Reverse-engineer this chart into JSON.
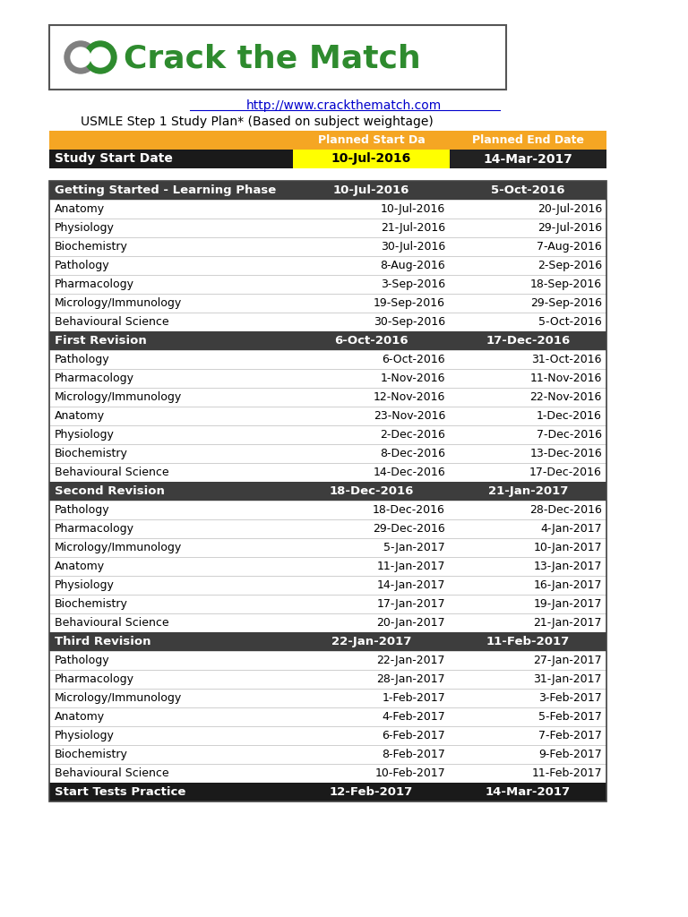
{
  "logo_text": "Crack the Match",
  "url": "http://www.crackthematch.com",
  "subtitle": "USMLE Step 1 Study Plan* (Based on subject weightage)",
  "study_start_row": [
    "Study Start Date",
    "10-Jul-2016",
    "14-Mar-2017"
  ],
  "sections": [
    {
      "section_header": [
        "Getting Started - Learning Phase",
        "10-Jul-2016",
        "5-Oct-2016"
      ],
      "rows": [
        [
          "Anatomy",
          "10-Jul-2016",
          "20-Jul-2016"
        ],
        [
          "Physiology",
          "21-Jul-2016",
          "29-Jul-2016"
        ],
        [
          "Biochemistry",
          "30-Jul-2016",
          "7-Aug-2016"
        ],
        [
          "Pathology",
          "8-Aug-2016",
          "2-Sep-2016"
        ],
        [
          "Pharmacology",
          "3-Sep-2016",
          "18-Sep-2016"
        ],
        [
          "Micrology/Immunology",
          "19-Sep-2016",
          "29-Sep-2016"
        ],
        [
          "Behavioural Science",
          "30-Sep-2016",
          "5-Oct-2016"
        ]
      ]
    },
    {
      "section_header": [
        "First Revision",
        "6-Oct-2016",
        "17-Dec-2016"
      ],
      "rows": [
        [
          "Pathology",
          "6-Oct-2016",
          "31-Oct-2016"
        ],
        [
          "Pharmacology",
          "1-Nov-2016",
          "11-Nov-2016"
        ],
        [
          "Micrology/Immunology",
          "12-Nov-2016",
          "22-Nov-2016"
        ],
        [
          "Anatomy",
          "23-Nov-2016",
          "1-Dec-2016"
        ],
        [
          "Physiology",
          "2-Dec-2016",
          "7-Dec-2016"
        ],
        [
          "Biochemistry",
          "8-Dec-2016",
          "13-Dec-2016"
        ],
        [
          "Behavioural Science",
          "14-Dec-2016",
          "17-Dec-2016"
        ]
      ]
    },
    {
      "section_header": [
        "Second Revision",
        "18-Dec-2016",
        "21-Jan-2017"
      ],
      "rows": [
        [
          "Pathology",
          "18-Dec-2016",
          "28-Dec-2016"
        ],
        [
          "Pharmacology",
          "29-Dec-2016",
          "4-Jan-2017"
        ],
        [
          "Micrology/Immunology",
          "5-Jan-2017",
          "10-Jan-2017"
        ],
        [
          "Anatomy",
          "11-Jan-2017",
          "13-Jan-2017"
        ],
        [
          "Physiology",
          "14-Jan-2017",
          "16-Jan-2017"
        ],
        [
          "Biochemistry",
          "17-Jan-2017",
          "19-Jan-2017"
        ],
        [
          "Behavioural Science",
          "20-Jan-2017",
          "21-Jan-2017"
        ]
      ]
    },
    {
      "section_header": [
        "Third Revision",
        "22-Jan-2017",
        "11-Feb-2017"
      ],
      "rows": [
        [
          "Pathology",
          "22-Jan-2017",
          "27-Jan-2017"
        ],
        [
          "Pharmacology",
          "28-Jan-2017",
          "31-Jan-2017"
        ],
        [
          "Micrology/Immunology",
          "1-Feb-2017",
          "3-Feb-2017"
        ],
        [
          "Anatomy",
          "4-Feb-2017",
          "5-Feb-2017"
        ],
        [
          "Physiology",
          "6-Feb-2017",
          "7-Feb-2017"
        ],
        [
          "Biochemistry",
          "8-Feb-2017",
          "9-Feb-2017"
        ],
        [
          "Behavioural Science",
          "10-Feb-2017",
          "11-Feb-2017"
        ]
      ]
    }
  ],
  "final_row": [
    "Start Tests Practice",
    "12-Feb-2017",
    "14-Mar-2017"
  ],
  "colors": {
    "orange_header": "#F5A623",
    "dark_header": "#3D3D3D",
    "black_row": "#1A1A1A",
    "yellow_cell": "#FFFF00",
    "url_color": "#0000CC",
    "logo_green": "#2E8B2E",
    "logo_gray": "#808080"
  },
  "figsize": [
    7.68,
    10.24
  ],
  "dpi": 100
}
